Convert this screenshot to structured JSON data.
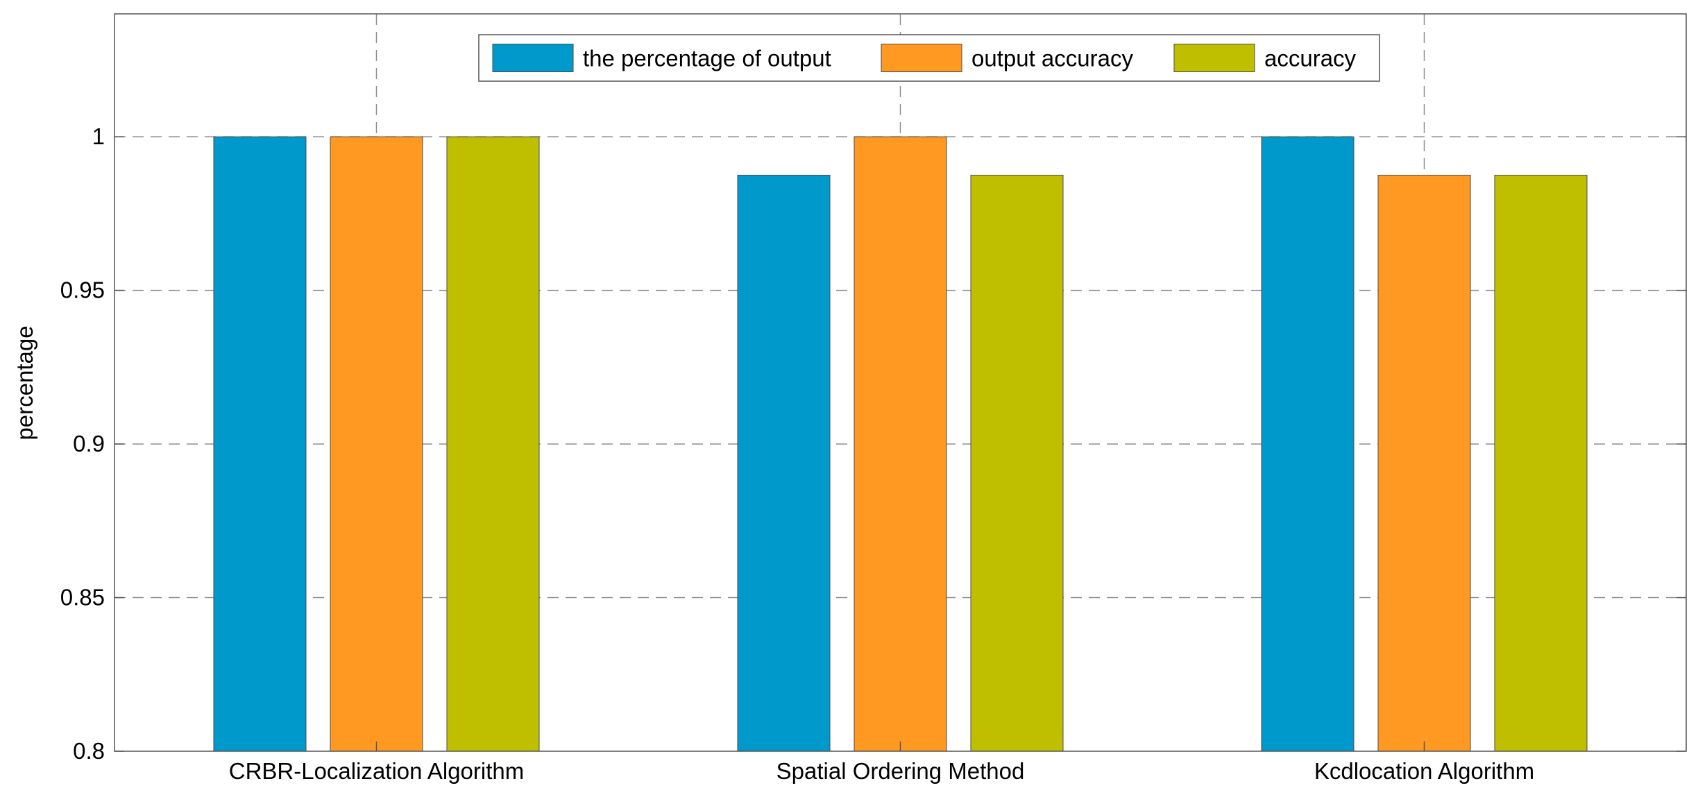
{
  "chart_data": {
    "type": "bar",
    "title": "",
    "xlabel": "",
    "ylabel": "percentage",
    "ylim": [
      0.8,
      1.04
    ],
    "yticks": [
      "0.8",
      "0.85",
      "0.9",
      "0.95",
      "1"
    ],
    "categories": [
      "CRBR-Localization Algorithm",
      "Spatial Ordering Method",
      "Kcdlocation Algorithm"
    ],
    "series": [
      {
        "name": "the percentage of output",
        "color": "#0099CC",
        "values": [
          1.0,
          0.9875,
          1.0
        ]
      },
      {
        "name": "output accuracy",
        "color": "#FF9922",
        "values": [
          1.0,
          1.0,
          0.9875
        ]
      },
      {
        "name": "accuracy",
        "color": "#BFBF00",
        "values": [
          1.0,
          0.9875,
          0.9875
        ]
      }
    ],
    "grid": true,
    "legend": "top-center"
  }
}
